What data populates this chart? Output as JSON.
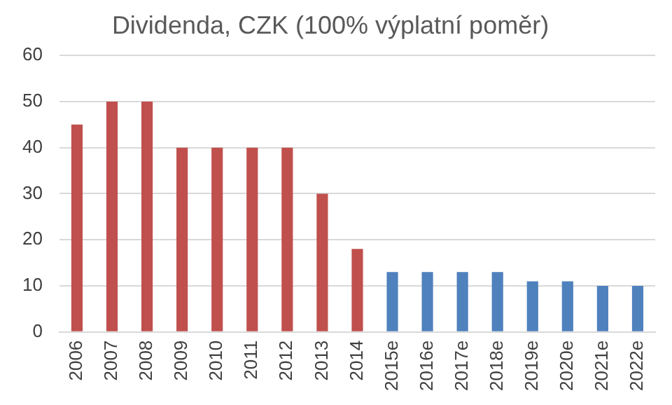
{
  "chart_data": {
    "type": "bar",
    "title": "Dividenda, CZK (100% výplatní poměr)",
    "categories": [
      "2006",
      "2007",
      "2008",
      "2009",
      "2010",
      "2011",
      "2012",
      "2013",
      "2014",
      "2015e",
      "2016e",
      "2017e",
      "2018e",
      "2019e",
      "2020e",
      "2021e",
      "2022e"
    ],
    "values": [
      45,
      50,
      50,
      40,
      40,
      40,
      40,
      30,
      18,
      13,
      13,
      13,
      13,
      11,
      11,
      10,
      10
    ],
    "colors": [
      "#c0504d",
      "#c0504d",
      "#c0504d",
      "#c0504d",
      "#c0504d",
      "#c0504d",
      "#c0504d",
      "#c0504d",
      "#c0504d",
      "#4f81bd",
      "#4f81bd",
      "#4f81bd",
      "#4f81bd",
      "#4f81bd",
      "#4f81bd",
      "#4f81bd",
      "#4f81bd"
    ],
    "ylim": [
      0,
      60
    ],
    "yticks": [
      0,
      10,
      20,
      30,
      40,
      50,
      60
    ],
    "grid": "y"
  }
}
